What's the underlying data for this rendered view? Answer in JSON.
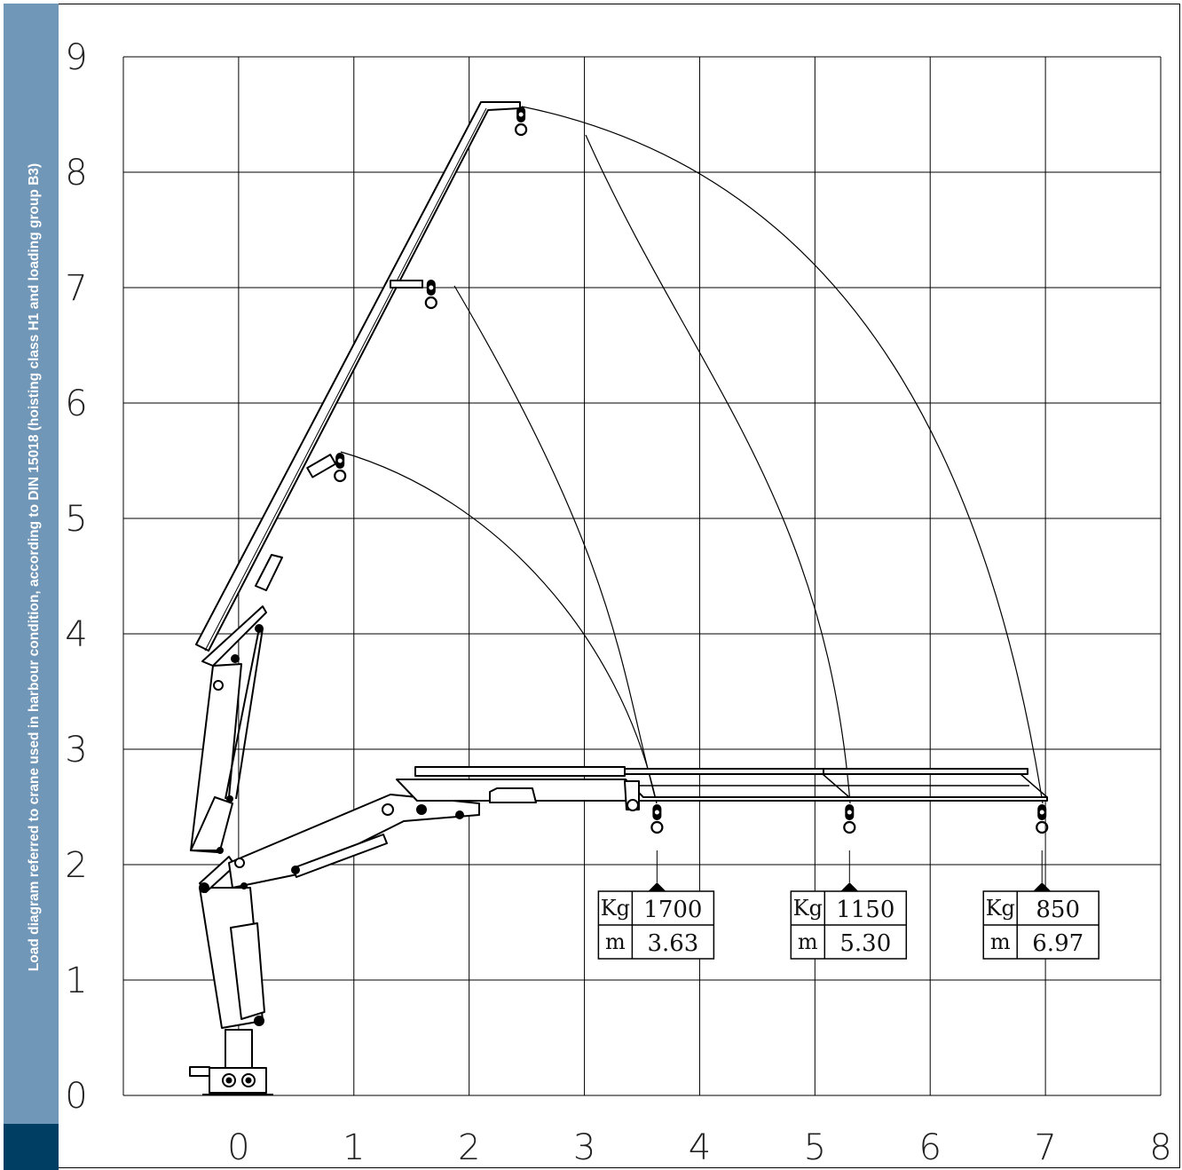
{
  "sidebar": {
    "title": "Load diagram referred to crane used in harbour condition, according to DIN 15018  (hoisting class H1 and loading group B3)",
    "color": "#7096b8",
    "foot_color": "#003f63"
  },
  "diagram": {
    "x_ticks": [
      "0",
      "1",
      "2",
      "3",
      "4",
      "5",
      "6",
      "7",
      "8"
    ],
    "y_ticks": [
      "0",
      "1",
      "2",
      "3",
      "4",
      "5",
      "6",
      "7",
      "8",
      "9"
    ],
    "x_range": [
      -1,
      8
    ],
    "y_range": [
      0,
      9
    ],
    "hook_positions": [
      {
        "x": 0.88,
        "y": 5.6
      },
      {
        "x": 1.67,
        "y": 7.1
      },
      {
        "x": 2.45,
        "y": 8.6
      }
    ],
    "load_tables": [
      {
        "kg_label": "Kg",
        "kg": "1700",
        "m_label": "m",
        "m": "3.63",
        "boom_x": 3.63
      },
      {
        "kg_label": "Kg",
        "kg": "1150",
        "m_label": "m",
        "m": "5.30",
        "boom_x": 5.3
      },
      {
        "kg_label": "Kg",
        "kg": "850",
        "m_label": "m",
        "m": "6.97",
        "boom_x": 6.97
      }
    ]
  }
}
